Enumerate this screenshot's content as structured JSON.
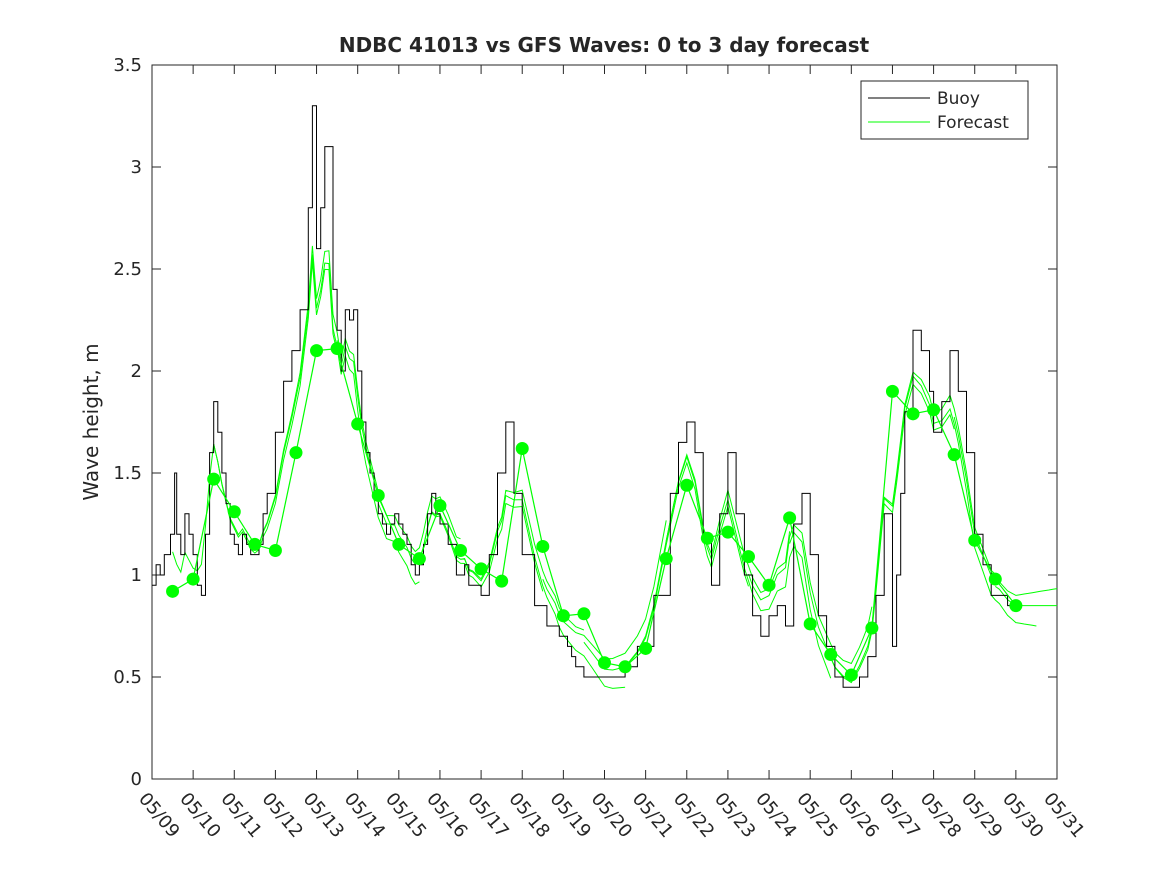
{
  "chart_data": {
    "type": "line",
    "title": "NDBC 41013 vs GFS Waves: 0 to 3 day forecast",
    "xlabel": "",
    "ylabel": "Wave height, m",
    "xlim": [
      0,
      22
    ],
    "ylim": [
      0,
      3.5
    ],
    "x_tick_labels": [
      "05/09",
      "05/10",
      "05/11",
      "05/12",
      "05/13",
      "05/14",
      "05/15",
      "05/16",
      "05/17",
      "05/18",
      "05/19",
      "05/20",
      "05/21",
      "05/22",
      "05/23",
      "05/24",
      "05/25",
      "05/26",
      "05/27",
      "05/28",
      "05/29",
      "05/30",
      "05/31"
    ],
    "y_ticks": [
      0,
      0.5,
      1,
      1.5,
      2,
      2.5,
      3,
      3.5
    ],
    "y_tick_labels": [
      "0",
      "0.5",
      "1",
      "1.5",
      "2",
      "2.5",
      "3",
      "3.5"
    ],
    "legend": {
      "placement": "top-right",
      "entries": [
        "Buoy",
        "Forecast"
      ]
    },
    "grid": false,
    "colors": {
      "buoy": "#000000",
      "forecast": "#00ff00"
    },
    "series": [
      {
        "name": "Buoy",
        "x": [
          0,
          0.1,
          0.2,
          0.3,
          0.45,
          0.55,
          0.6,
          0.7,
          0.8,
          0.9,
          1.0,
          1.1,
          1.2,
          1.3,
          1.4,
          1.5,
          1.6,
          1.7,
          1.8,
          1.9,
          2.0,
          2.1,
          2.2,
          2.3,
          2.4,
          2.5,
          2.6,
          2.7,
          2.8,
          3.0,
          3.2,
          3.4,
          3.6,
          3.8,
          3.9,
          4.0,
          4.1,
          4.2,
          4.3,
          4.4,
          4.5,
          4.6,
          4.7,
          4.8,
          4.9,
          5.0,
          5.1,
          5.2,
          5.3,
          5.4,
          5.5,
          5.6,
          5.7,
          5.8,
          5.9,
          6.0,
          6.1,
          6.2,
          6.3,
          6.4,
          6.5,
          6.6,
          6.7,
          6.8,
          6.9,
          7.0,
          7.2,
          7.4,
          7.6,
          7.7,
          7.8,
          8.0,
          8.2,
          8.4,
          8.6,
          8.8,
          9.0,
          9.3,
          9.6,
          9.8,
          9.9,
          10.0,
          10.1,
          10.2,
          10.3,
          10.5,
          10.7,
          10.9,
          11.2,
          11.5,
          11.8,
          12.2,
          12.6,
          12.8,
          13.0,
          13.2,
          13.4,
          13.6,
          13.8,
          14.0,
          14.2,
          14.4,
          14.6,
          14.8,
          15.0,
          15.2,
          15.4,
          15.6,
          15.8,
          16.0,
          16.2,
          16.4,
          16.6,
          16.8,
          17.0,
          17.2,
          17.4,
          17.6,
          17.8,
          18.0,
          18.1,
          18.2,
          18.3,
          18.5,
          18.7,
          18.9,
          19.0,
          19.2,
          19.4,
          19.6,
          19.8,
          20.0,
          20.2,
          20.4,
          20.6,
          20.8,
          21.0
        ],
        "values": [
          0.95,
          1.05,
          1.0,
          1.1,
          1.2,
          1.5,
          1.2,
          1.1,
          1.3,
          1.2,
          1.1,
          0.95,
          0.9,
          1.2,
          1.6,
          1.85,
          1.7,
          1.5,
          1.35,
          1.2,
          1.15,
          1.1,
          1.2,
          1.15,
          1.1,
          1.1,
          1.15,
          1.3,
          1.4,
          1.7,
          1.95,
          2.1,
          2.3,
          2.8,
          3.3,
          2.6,
          2.8,
          3.1,
          3.1,
          2.4,
          2.2,
          2.0,
          2.3,
          2.25,
          2.3,
          2.0,
          1.75,
          1.6,
          1.5,
          1.4,
          1.3,
          1.25,
          1.2,
          1.25,
          1.3,
          1.25,
          1.2,
          1.15,
          1.05,
          1.0,
          1.05,
          1.15,
          1.3,
          1.4,
          1.3,
          1.25,
          1.15,
          1.0,
          1.05,
          0.95,
          0.95,
          0.9,
          1.1,
          1.5,
          1.75,
          1.4,
          1.1,
          0.85,
          0.75,
          0.75,
          0.7,
          0.7,
          0.65,
          0.6,
          0.55,
          0.5,
          0.5,
          0.5,
          0.5,
          0.55,
          0.65,
          0.9,
          1.4,
          1.65,
          1.75,
          1.6,
          1.2,
          0.95,
          1.3,
          1.6,
          1.3,
          1.0,
          0.8,
          0.7,
          0.8,
          0.85,
          0.75,
          1.25,
          1.4,
          1.1,
          0.8,
          0.65,
          0.5,
          0.45,
          0.45,
          0.5,
          0.6,
          0.9,
          1.3,
          0.65,
          1.0,
          1.4,
          1.8,
          2.2,
          2.1,
          1.9,
          1.7,
          1.85,
          2.1,
          1.9,
          1.6,
          1.2,
          1.05,
          0.9,
          0.9,
          0.85,
          0.85
        ]
      },
      {
        "name": "Forecast",
        "x": [
          0.5,
          1.0,
          1.5,
          2.0,
          2.5,
          3.0,
          3.5,
          4.0,
          4.5,
          5.0,
          5.5,
          6.0,
          6.5,
          7.0,
          7.5,
          8.0,
          8.5,
          9.0,
          9.5,
          10.0,
          10.5,
          11.0,
          11.5,
          12.0,
          12.5,
          13.0,
          13.5,
          14.0,
          14.5,
          15.0,
          15.5,
          16.0,
          16.5,
          17.0,
          17.5,
          18.0,
          18.5,
          19.0,
          19.5,
          20.0,
          20.5,
          21.0
        ],
        "values": [
          0.92,
          0.98,
          1.47,
          1.31,
          1.15,
          1.12,
          1.6,
          2.1,
          2.11,
          1.74,
          1.39,
          1.15,
          1.08,
          1.34,
          1.12,
          1.03,
          0.97,
          1.62,
          1.14,
          0.8,
          0.81,
          0.57,
          0.55,
          0.64,
          1.08,
          1.44,
          1.18,
          1.21,
          1.09,
          0.95,
          1.28,
          0.76,
          0.61,
          0.51,
          0.74,
          1.9,
          1.79,
          1.81,
          1.59,
          1.17,
          0.98,
          0.85
        ]
      }
    ]
  }
}
